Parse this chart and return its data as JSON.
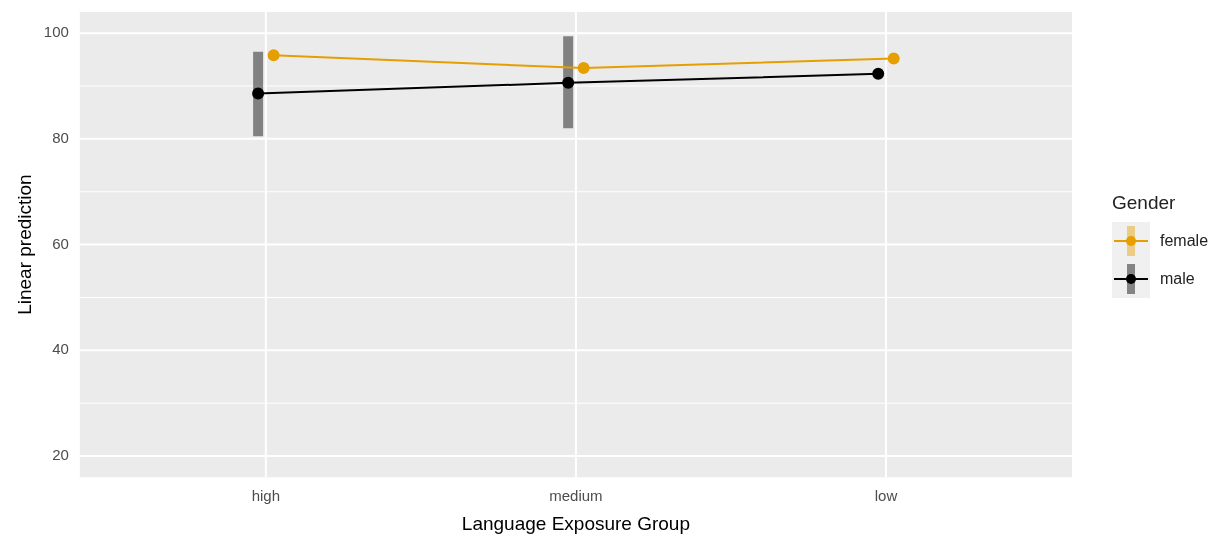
{
  "chart_data": {
    "type": "line",
    "xlabel": "Language Exposure Group",
    "ylabel": "Linear prediction",
    "legend_title": "Gender",
    "legend": "right",
    "marker": "circle",
    "grid": true,
    "categories": [
      "high",
      "medium",
      "low"
    ],
    "series": [
      {
        "name": "female",
        "color": "#e69f00",
        "values": [
          95.8,
          93.4,
          95.2
        ],
        "errors": [
          null,
          null,
          null
        ]
      },
      {
        "name": "male",
        "color": "#000000",
        "values": [
          88.6,
          90.6,
          92.3
        ],
        "errors": [
          [
            80.5,
            96.5
          ],
          [
            82.0,
            99.4
          ],
          null
        ]
      }
    ],
    "ylim": [
      16,
      104
    ],
    "yticks": [
      20,
      40,
      60,
      80,
      100
    ]
  }
}
